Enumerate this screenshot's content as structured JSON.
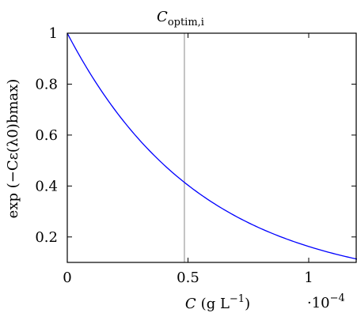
{
  "chart_data": {
    "type": "line",
    "title": "C",
    "title_subscript": "optim,i",
    "xlabel_var": "C",
    "xlabel_unit": "(g L",
    "xlabel_unit_exp": "−1",
    "xlabel_unit_close": ")",
    "ylabel": "exp (−Cε(λ0)bmax)",
    "x_multiplier_base": "·10",
    "x_multiplier_exp": "−4",
    "xlim": [
      0,
      1.2
    ],
    "ylim": [
      0.1,
      1
    ],
    "x_ticks": [
      0,
      0.5,
      1
    ],
    "x_tick_labels": [
      "0",
      "0.5",
      "1"
    ],
    "y_ticks": [
      0.2,
      0.4,
      0.6,
      0.8,
      1
    ],
    "y_tick_labels": [
      "0.2",
      "0.4",
      "0.6",
      "0.8",
      "1"
    ],
    "vline_x": 0.485,
    "series": [
      {
        "color": "#0000ff",
        "x": [
          0,
          0.1,
          0.2,
          0.3,
          0.4,
          0.5,
          0.6,
          0.7,
          0.8,
          0.9,
          1.0,
          1.1,
          1.2
        ],
        "y": [
          1.0,
          0.834,
          0.696,
          0.58,
          0.484,
          0.404,
          0.337,
          0.281,
          0.234,
          0.195,
          0.163,
          0.136,
          0.113
        ]
      }
    ],
    "colors": {
      "curve": "#0000ff",
      "vline": "#b0b0b0",
      "axis": "#000000"
    }
  }
}
